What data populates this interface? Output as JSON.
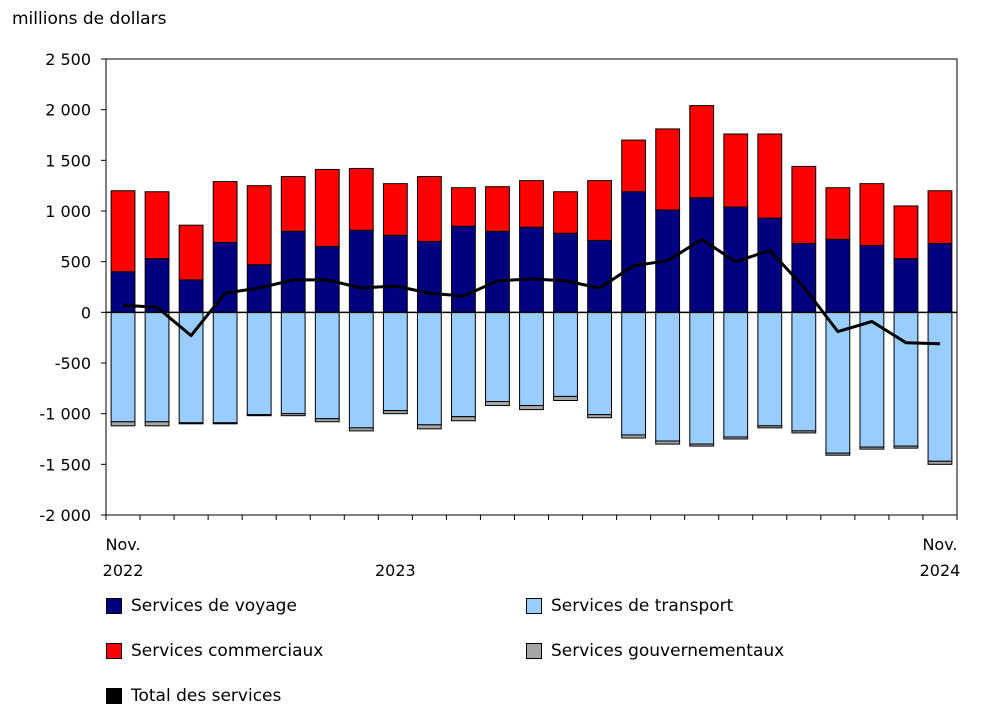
{
  "chart_data": {
    "type": "bar",
    "stacked": true,
    "ylabel": "millions de dollars",
    "ylim": [
      -2000,
      2500
    ],
    "yticks": [
      2500,
      2000,
      1500,
      1000,
      500,
      0,
      -500,
      -1000,
      -1500,
      -2000
    ],
    "ytick_labels": [
      "2 500",
      "2 000",
      "1 500",
      "1 000",
      "500",
      "0",
      "-500",
      "-1 000",
      "-1 500",
      "-2 000"
    ],
    "x_labels": [
      {
        "index": 0,
        "line1": "Nov.",
        "line2": "2022"
      },
      {
        "index": 8,
        "line1": "",
        "line2": "2023"
      },
      {
        "index": 24,
        "line1": "Nov.",
        "line2": "2024"
      }
    ],
    "categories": [
      "2022-11",
      "2022-12",
      "2023-01",
      "2023-02",
      "2023-03",
      "2023-04",
      "2023-05",
      "2023-06",
      "2023-07",
      "2023-08",
      "2023-09",
      "2023-10",
      "2023-11",
      "2023-12",
      "2024-01",
      "2024-02",
      "2024-03",
      "2024-04",
      "2024-05",
      "2024-06",
      "2024-07",
      "2024-08",
      "2024-09",
      "2024-10",
      "2024-11"
    ],
    "series": [
      {
        "name": "Services de voyage",
        "color": "#000080",
        "values": [
          400,
          530,
          320,
          690,
          470,
          800,
          650,
          810,
          760,
          700,
          850,
          800,
          840,
          780,
          710,
          1190,
          1010,
          1130,
          1040,
          930,
          680,
          720,
          660,
          530,
          680
        ]
      },
      {
        "name": "Services commerciaux",
        "color": "#ff0000",
        "values": [
          800,
          660,
          540,
          600,
          780,
          540,
          760,
          610,
          510,
          640,
          380,
          440,
          460,
          410,
          590,
          510,
          800,
          910,
          720,
          830,
          760,
          510,
          610,
          520,
          520
        ]
      },
      {
        "name": "Services de transport",
        "color": "#99ccff",
        "values": [
          -1080,
          -1080,
          -1090,
          -1090,
          -1010,
          -1000,
          -1050,
          -1140,
          -970,
          -1110,
          -1030,
          -880,
          -920,
          -830,
          -1010,
          -1210,
          -1270,
          -1300,
          -1230,
          -1120,
          -1170,
          -1390,
          -1330,
          -1320,
          -1470
        ]
      },
      {
        "name": "Services gouvernementaux",
        "color": "#a6a6a6",
        "values": [
          -40,
          -40,
          -10,
          -10,
          -10,
          -20,
          -30,
          -30,
          -30,
          -40,
          -40,
          -40,
          -40,
          -40,
          -30,
          -30,
          -30,
          -20,
          -20,
          -20,
          -20,
          -20,
          -20,
          -20,
          -30
        ]
      },
      {
        "name": "Total des services",
        "color": "#000000",
        "type": "line",
        "values": [
          70,
          50,
          -230,
          190,
          240,
          320,
          320,
          240,
          260,
          190,
          160,
          310,
          330,
          310,
          240,
          460,
          510,
          720,
          500,
          610,
          250,
          -190,
          -90,
          -300,
          -310
        ]
      }
    ]
  }
}
